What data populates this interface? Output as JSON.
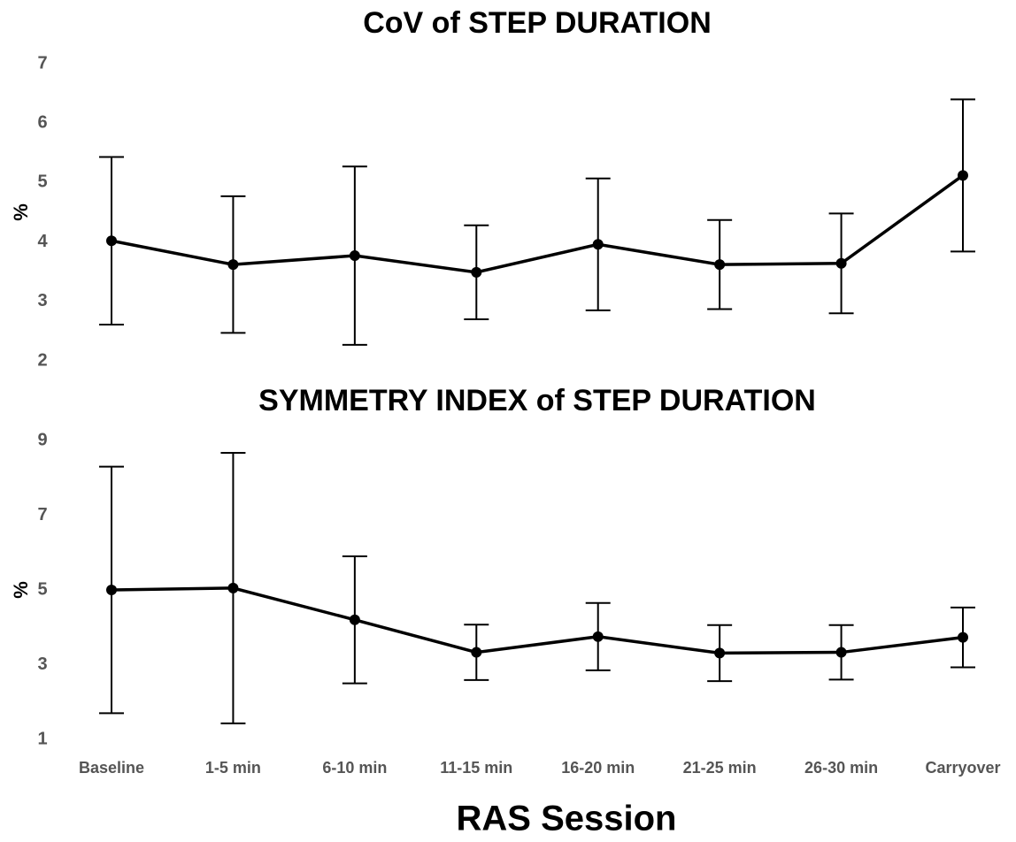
{
  "chart_data": [
    {
      "type": "line",
      "title": "CoV of STEP DURATION",
      "y_label": "%",
      "values": [
        4.02,
        3.62,
        3.77,
        3.49,
        3.96,
        3.62,
        3.64,
        5.12
      ],
      "errors": [
        1.41,
        1.15,
        1.5,
        0.79,
        1.11,
        0.75,
        0.84,
        1.28
      ],
      "ylim": [
        2,
        7
      ],
      "yticks": [
        2,
        3,
        4,
        5,
        6,
        7
      ],
      "color": "#000000"
    },
    {
      "type": "line",
      "title": "SYMMETRY INDEX of STEP DURATION",
      "y_label": "%",
      "categories": [
        "Baseline",
        "1-5 min",
        "6-10 min",
        "11-15 min",
        "16-20 min",
        "21-25 min",
        "26-30 min",
        "Carryover"
      ],
      "values": [
        5.0,
        5.05,
        4.2,
        3.33,
        3.75,
        3.31,
        3.33,
        3.73
      ],
      "errors": [
        3.3,
        3.62,
        1.7,
        0.74,
        0.9,
        0.75,
        0.73,
        0.8
      ],
      "ylim": [
        1,
        9
      ],
      "yticks": [
        1,
        3,
        5,
        7,
        9
      ],
      "color": "#000000"
    }
  ],
  "x_label": "RAS Session"
}
